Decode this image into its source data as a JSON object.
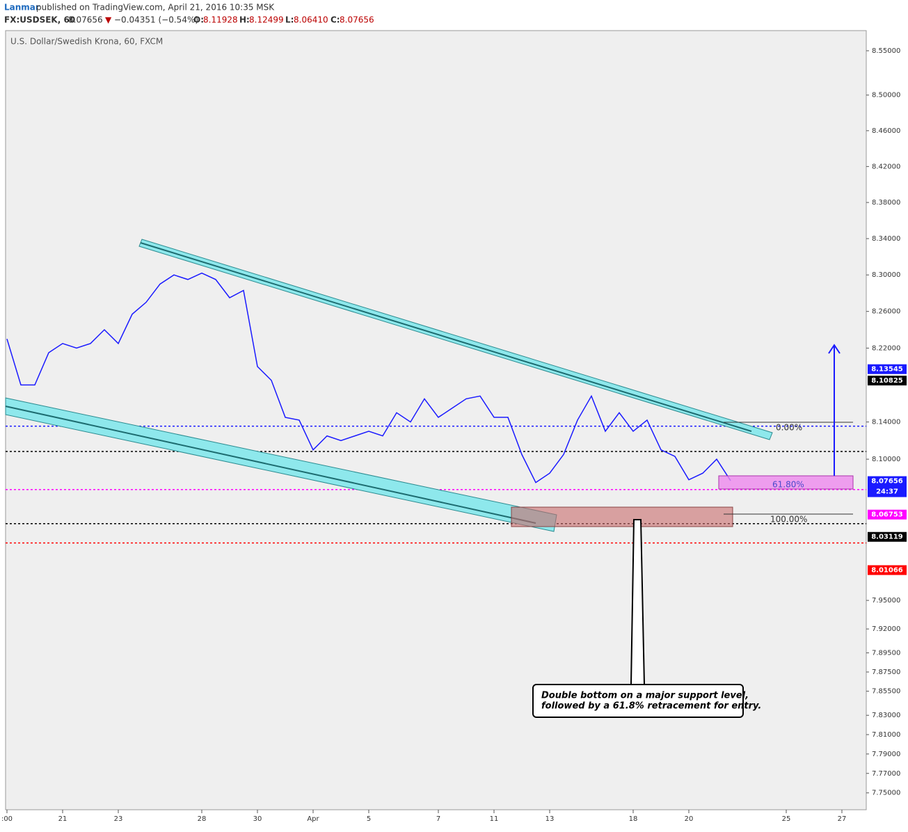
{
  "chart_data": {
    "type": "line",
    "header": {
      "author": "Lanmar",
      "published": "published on TradingView.com, April 21, 2016 10:35 MSK",
      "symbol": "FX:USDSEK, 60",
      "last": "8.07656",
      "arrow": "▼",
      "change": "−0.04351 (−0.54%)",
      "o_label": "O:",
      "o": "8.11928",
      "h_label": "H:",
      "h": "8.12499",
      "l_label": "L:",
      "l": "8.06410",
      "c_label": "C:",
      "c": "8.07656"
    },
    "title": "U.S. Dollar/Swedish Krona, 60, FXCM",
    "categories": [
      ":00",
      null,
      null,
      null,
      "21",
      null,
      null,
      null,
      "23",
      null,
      null,
      null,
      null,
      null,
      "28",
      null,
      null,
      null,
      "30",
      null,
      null,
      null,
      "Apr",
      null,
      null,
      null,
      "5",
      null,
      null,
      null,
      null,
      "7",
      null,
      null,
      null,
      "11",
      null,
      null,
      null,
      "13",
      null,
      null,
      null,
      null,
      null,
      "18",
      null,
      null,
      null,
      "20",
      null,
      null,
      null,
      null,
      null,
      null,
      "25",
      null,
      null,
      null,
      "27",
      null,
      null
    ],
    "values": [
      8.23,
      8.18,
      8.18,
      8.215,
      8.225,
      8.22,
      8.225,
      8.24,
      8.225,
      8.257,
      8.27,
      8.29,
      8.3,
      8.295,
      8.302,
      8.295,
      8.275,
      8.283,
      8.2,
      8.185,
      8.145,
      8.142,
      8.11,
      8.125,
      8.12,
      8.125,
      8.13,
      8.125,
      8.15,
      8.14,
      8.165,
      8.145,
      8.155,
      8.165,
      8.168,
      8.145,
      8.145,
      8.105,
      8.075,
      8.085,
      8.105,
      8.142,
      8.168,
      8.13,
      8.15,
      8.13,
      8.142,
      8.11,
      8.103,
      8.078,
      8.085,
      8.1,
      8.077,
      null,
      null,
      null,
      null,
      null,
      null,
      null,
      null,
      null,
      null
    ],
    "color": "#1a1aff",
    "log_scale": true,
    "ylim": [
      7.732,
      8.576
    ],
    "yticks": [
      {
        "value": 8.55,
        "label": "8.55000"
      },
      {
        "value": 8.5,
        "label": "8.50000"
      },
      {
        "value": 8.46,
        "label": "8.46000"
      },
      {
        "value": 8.42,
        "label": "8.42000"
      },
      {
        "value": 8.38,
        "label": "8.38000"
      },
      {
        "value": 8.34,
        "label": "8.34000"
      },
      {
        "value": 8.3,
        "label": "8.30000"
      },
      {
        "value": 8.26,
        "label": "8.26000"
      },
      {
        "value": 8.22,
        "label": "8.22000"
      },
      {
        "value": 8.14,
        "label": "8.14000"
      },
      {
        "value": 8.1,
        "label": "8.10000"
      },
      {
        "value": 7.95,
        "label": "7.95000"
      },
      {
        "value": 7.92,
        "label": "7.92000"
      },
      {
        "value": 7.895,
        "label": "7.89500"
      },
      {
        "value": 7.875,
        "label": "7.87500"
      },
      {
        "value": 7.855,
        "label": "7.85500"
      },
      {
        "value": 7.83,
        "label": "7.83000"
      },
      {
        "value": 7.81,
        "label": "7.81000"
      },
      {
        "value": 7.79,
        "label": "7.79000"
      },
      {
        "value": 7.77,
        "label": "7.77000"
      },
      {
        "value": 7.75,
        "label": "7.75000"
      }
    ],
    "levels": [
      {
        "value": 8.13545,
        "color": "#1a1aff"
      },
      {
        "value": 8.10825,
        "color": "#000000"
      },
      {
        "value": 8.06753,
        "color": "#ff00ff"
      },
      {
        "value": 8.03119,
        "color": "#000000"
      },
      {
        "value": 8.01066,
        "color": "#ff0000"
      }
    ],
    "last_price": {
      "value": 8.07656,
      "countdown": "24:37",
      "color": "#1a1aff"
    },
    "annotations": {
      "fib_0": "0.00%",
      "fib_618": "61.80%",
      "fib_100": "100.00%",
      "note_line1": "Double bottom on a major support level,",
      "note_line2": "followed by a 61.8% retracement for entry."
    }
  }
}
